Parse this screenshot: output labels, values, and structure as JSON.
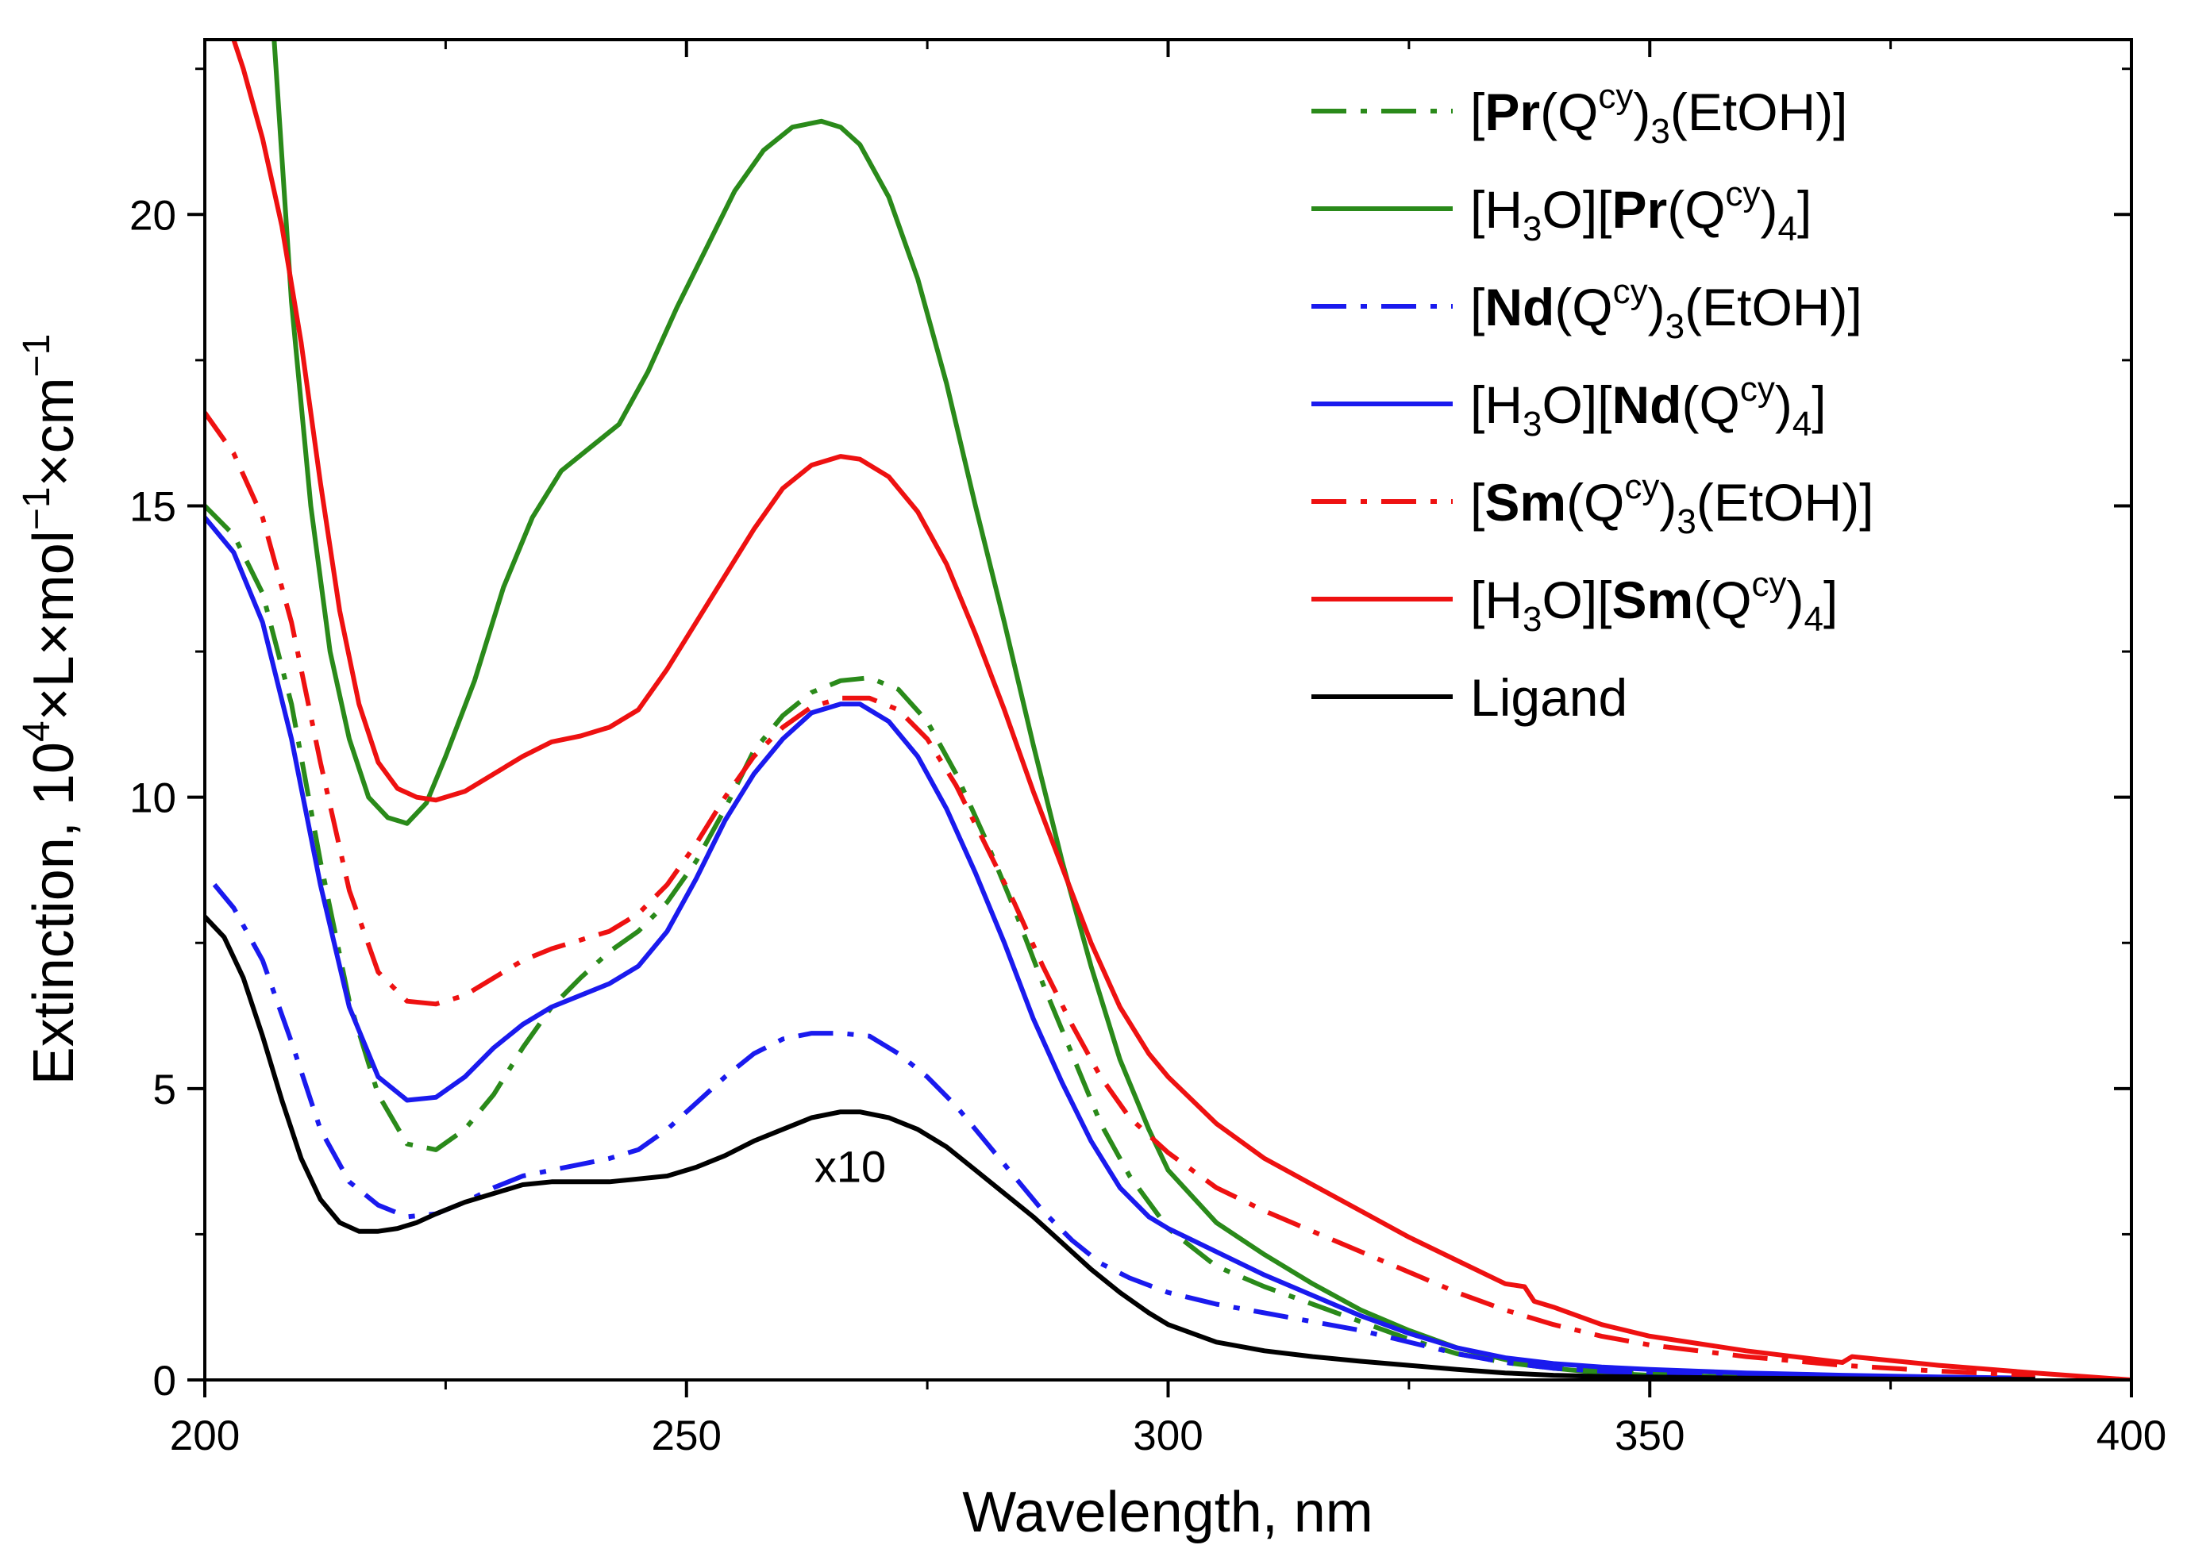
{
  "chart_data": {
    "type": "line",
    "title": "",
    "xlabel": "Wavelength, nm",
    "ylabel": {
      "prefix": "Extinction,  10",
      "exp1": "4",
      "mid1": "×L×mol",
      "exp2": "−1",
      "mid2": "×cm",
      "exp3": "−1"
    },
    "xlim": [
      200,
      400
    ],
    "ylim": [
      0,
      23
    ],
    "xticks": [
      200,
      250,
      300,
      350,
      400
    ],
    "xtick_labels": [
      "200",
      "250",
      "300",
      "350",
      "400"
    ],
    "yticks": [
      0,
      5,
      10,
      15,
      20
    ],
    "ytick_labels": [
      "0",
      "5",
      "10",
      "15",
      "20"
    ],
    "legend_position": "top-right",
    "annotation": {
      "text": "x10",
      "x": 267,
      "y": 3.4
    },
    "series": [
      {
        "name": "[Pr(Qcy)3(EtOH)]",
        "label_parts": [
          {
            "t": "["
          },
          {
            "t": "Pr",
            "b": true
          },
          {
            "t": "(Q"
          },
          {
            "t": "cy",
            "sup": true
          },
          {
            "t": ")"
          },
          {
            "t": "3",
            "sub": true
          },
          {
            "t": "(EtOH)]"
          }
        ],
        "color": "#2a8a1a",
        "style": "dashdot",
        "x": [
          200,
          203,
          206,
          209,
          212,
          215,
          218,
          221,
          224,
          227,
          230,
          233,
          236,
          239,
          242,
          245,
          248,
          251,
          254,
          257,
          260,
          263,
          266,
          269,
          272,
          275,
          278,
          281,
          284,
          287,
          290,
          293,
          296,
          300,
          305,
          310,
          315,
          320,
          325,
          330,
          335,
          340,
          345,
          350,
          360,
          370,
          380,
          390
        ],
        "y": [
          15.0,
          14.5,
          13.5,
          11.6,
          8.9,
          6.5,
          4.9,
          4.05,
          3.95,
          4.3,
          4.9,
          5.7,
          6.4,
          6.9,
          7.35,
          7.7,
          8.2,
          8.9,
          9.8,
          10.8,
          11.4,
          11.8,
          12.0,
          12.05,
          11.85,
          11.3,
          10.4,
          9.3,
          8.1,
          6.8,
          5.6,
          4.4,
          3.5,
          2.6,
          1.95,
          1.6,
          1.3,
          1.0,
          0.7,
          0.45,
          0.3,
          0.2,
          0.15,
          0.12,
          0.08,
          0.06,
          0.04,
          0.03
        ]
      },
      {
        "name": "[H3O][Pr(Qcy)4]",
        "label_parts": [
          {
            "t": "[H"
          },
          {
            "t": "3",
            "sub": true
          },
          {
            "t": "O]["
          },
          {
            "t": "Pr",
            "b": true
          },
          {
            "t": "(Q"
          },
          {
            "t": "cy",
            "sup": true
          },
          {
            "t": ")"
          },
          {
            "t": "4",
            "sub": true
          },
          {
            "t": "]"
          }
        ],
        "color": "#2a8a1a",
        "style": "solid",
        "x": [
          207,
          209,
          211,
          213,
          215,
          217,
          219,
          221,
          223,
          225,
          228,
          231,
          234,
          237,
          240,
          243,
          246,
          249,
          252,
          255,
          258,
          261,
          264,
          266,
          268,
          271,
          274,
          277,
          280,
          283,
          286,
          289,
          292,
          295,
          298,
          300,
          305,
          310,
          315,
          320,
          325,
          330,
          335,
          340,
          345,
          350,
          360,
          370,
          380,
          390
        ],
        "y": [
          23.5,
          18.5,
          15.0,
          12.5,
          11.0,
          10.0,
          9.65,
          9.55,
          9.9,
          10.7,
          12.0,
          13.6,
          14.8,
          15.6,
          16.0,
          16.4,
          17.3,
          18.4,
          19.4,
          20.4,
          21.1,
          21.5,
          21.6,
          21.5,
          21.2,
          20.3,
          18.9,
          17.1,
          15.0,
          13.0,
          10.9,
          8.9,
          7.1,
          5.5,
          4.3,
          3.6,
          2.7,
          2.15,
          1.65,
          1.2,
          0.85,
          0.55,
          0.35,
          0.2,
          0.12,
          0.08,
          0.05,
          0.04,
          0.03,
          0.02
        ]
      },
      {
        "name": "[Nd(Qcy)3(EtOH)]",
        "label_parts": [
          {
            "t": "["
          },
          {
            "t": "Nd",
            "b": true
          },
          {
            "t": "(Q"
          },
          {
            "t": "cy",
            "sup": true
          },
          {
            "t": ")"
          },
          {
            "t": "3",
            "sub": true
          },
          {
            "t": "(EtOH)]"
          }
        ],
        "color": "#1a1aee",
        "style": "dashdot",
        "x": [
          201,
          203,
          206,
          209,
          212,
          215,
          218,
          221,
          224,
          227,
          230,
          233,
          236,
          239,
          242,
          245,
          248,
          251,
          254,
          257,
          260,
          263,
          266,
          269,
          272,
          275,
          278,
          281,
          284,
          287,
          290,
          293,
          296,
          300,
          305,
          310,
          315,
          320,
          325,
          330,
          335,
          340,
          345,
          350,
          360,
          370,
          380,
          390
        ],
        "y": [
          8.5,
          8.1,
          7.2,
          5.8,
          4.3,
          3.4,
          3.0,
          2.8,
          2.85,
          3.05,
          3.3,
          3.5,
          3.6,
          3.7,
          3.8,
          3.95,
          4.3,
          4.75,
          5.2,
          5.6,
          5.85,
          5.95,
          5.95,
          5.9,
          5.6,
          5.2,
          4.7,
          4.1,
          3.5,
          2.9,
          2.4,
          2.0,
          1.75,
          1.5,
          1.3,
          1.15,
          1.0,
          0.85,
          0.65,
          0.45,
          0.3,
          0.2,
          0.15,
          0.1,
          0.08,
          0.06,
          0.04,
          0.03
        ]
      },
      {
        "name": "[H3O][Nd(Qcy)4]",
        "label_parts": [
          {
            "t": "[H"
          },
          {
            "t": "3",
            "sub": true
          },
          {
            "t": "O]["
          },
          {
            "t": "Nd",
            "b": true
          },
          {
            "t": "(Q"
          },
          {
            "t": "cy",
            "sup": true
          },
          {
            "t": ")"
          },
          {
            "t": "4",
            "sub": true
          },
          {
            "t": "]"
          }
        ],
        "color": "#1a1aee",
        "style": "solid",
        "x": [
          200,
          203,
          206,
          209,
          212,
          215,
          218,
          221,
          224,
          227,
          230,
          233,
          236,
          239,
          242,
          245,
          248,
          251,
          254,
          257,
          260,
          263,
          266,
          268,
          271,
          274,
          277,
          280,
          283,
          286,
          289,
          292,
          295,
          298,
          300,
          305,
          310,
          315,
          320,
          325,
          330,
          335,
          340,
          345,
          350,
          360,
          370,
          380,
          390
        ],
        "y": [
          14.8,
          14.2,
          13.0,
          11.0,
          8.5,
          6.4,
          5.2,
          4.8,
          4.85,
          5.2,
          5.7,
          6.1,
          6.4,
          6.6,
          6.8,
          7.1,
          7.7,
          8.6,
          9.6,
          10.4,
          11.0,
          11.45,
          11.6,
          11.6,
          11.3,
          10.7,
          9.8,
          8.7,
          7.5,
          6.2,
          5.1,
          4.1,
          3.3,
          2.8,
          2.6,
          2.2,
          1.8,
          1.45,
          1.1,
          0.8,
          0.55,
          0.38,
          0.28,
          0.22,
          0.18,
          0.12,
          0.08,
          0.05,
          0.03
        ]
      },
      {
        "name": "[Sm(Qcy)3(EtOH)]",
        "label_parts": [
          {
            "t": "["
          },
          {
            "t": "Sm",
            "b": true
          },
          {
            "t": "(Q"
          },
          {
            "t": "cy",
            "sup": true
          },
          {
            "t": ")"
          },
          {
            "t": "3",
            "sub": true
          },
          {
            "t": "(EtOH)]"
          }
        ],
        "color": "#ee1111",
        "style": "dashdot",
        "x": [
          200,
          203,
          206,
          209,
          212,
          215,
          218,
          221,
          224,
          227,
          230,
          233,
          236,
          239,
          242,
          245,
          248,
          251,
          254,
          257,
          260,
          263,
          266,
          269,
          272,
          275,
          278,
          281,
          284,
          287,
          290,
          293,
          296,
          300,
          305,
          310,
          315,
          320,
          325,
          330,
          335,
          340,
          345,
          350,
          360,
          370,
          380,
          390
        ],
        "y": [
          16.6,
          15.9,
          14.8,
          13.0,
          10.6,
          8.4,
          7.0,
          6.5,
          6.45,
          6.6,
          6.9,
          7.2,
          7.4,
          7.55,
          7.7,
          8.0,
          8.5,
          9.2,
          10.0,
          10.7,
          11.2,
          11.55,
          11.7,
          11.7,
          11.5,
          11.0,
          10.2,
          9.2,
          8.2,
          7.1,
          6.1,
          5.2,
          4.5,
          3.9,
          3.3,
          2.9,
          2.55,
          2.2,
          1.85,
          1.5,
          1.2,
          0.95,
          0.75,
          0.6,
          0.4,
          0.25,
          0.15,
          0.08
        ]
      },
      {
        "name": "[H3O][Sm(Qcy)4]",
        "label_parts": [
          {
            "t": "[H"
          },
          {
            "t": "3",
            "sub": true
          },
          {
            "t": "O]["
          },
          {
            "t": "Sm",
            "b": true
          },
          {
            "t": "(Q"
          },
          {
            "t": "cy",
            "sup": true
          },
          {
            "t": ")"
          },
          {
            "t": "4",
            "sub": true
          },
          {
            "t": "]"
          }
        ],
        "color": "#ee1111",
        "style": "solid",
        "x": [
          202,
          204,
          206,
          208,
          210,
          212,
          214,
          216,
          218,
          220,
          222,
          224,
          227,
          230,
          233,
          236,
          239,
          242,
          245,
          248,
          251,
          254,
          257,
          260,
          263,
          266,
          268,
          271,
          274,
          277,
          280,
          283,
          286,
          289,
          292,
          295,
          298,
          300,
          305,
          310,
          315,
          320,
          325,
          330,
          335,
          337,
          338,
          340,
          345,
          350,
          360,
          370,
          371,
          380,
          390,
          400
        ],
        "y": [
          23.5,
          22.5,
          21.3,
          19.8,
          17.8,
          15.4,
          13.2,
          11.6,
          10.6,
          10.15,
          10.0,
          9.95,
          10.1,
          10.4,
          10.7,
          10.95,
          11.05,
          11.2,
          11.5,
          12.2,
          13.0,
          13.8,
          14.6,
          15.3,
          15.7,
          15.85,
          15.8,
          15.5,
          14.9,
          14.0,
          12.8,
          11.5,
          10.1,
          8.8,
          7.5,
          6.4,
          5.6,
          5.2,
          4.4,
          3.8,
          3.35,
          2.9,
          2.45,
          2.05,
          1.65,
          1.6,
          1.35,
          1.25,
          0.95,
          0.75,
          0.5,
          0.3,
          0.4,
          0.25,
          0.12,
          0.0
        ]
      },
      {
        "name": "Ligand",
        "label_parts": [
          {
            "t": "Ligand"
          }
        ],
        "color": "#000000",
        "style": "solid",
        "x": [
          200,
          202,
          204,
          206,
          208,
          210,
          212,
          214,
          216,
          218,
          220,
          222,
          224,
          227,
          230,
          233,
          236,
          239,
          242,
          245,
          248,
          251,
          254,
          257,
          260,
          263,
          266,
          268,
          271,
          274,
          277,
          280,
          283,
          286,
          289,
          292,
          295,
          298,
          300,
          305,
          310,
          315,
          320,
          325,
          330,
          335,
          340,
          345,
          350,
          360,
          370,
          380,
          390
        ],
        "y": [
          7.95,
          7.6,
          6.9,
          5.9,
          4.8,
          3.8,
          3.1,
          2.7,
          2.55,
          2.55,
          2.6,
          2.7,
          2.85,
          3.05,
          3.2,
          3.35,
          3.4,
          3.4,
          3.4,
          3.45,
          3.5,
          3.65,
          3.85,
          4.1,
          4.3,
          4.5,
          4.6,
          4.6,
          4.5,
          4.3,
          4.0,
          3.6,
          3.2,
          2.8,
          2.35,
          1.9,
          1.5,
          1.15,
          0.95,
          0.65,
          0.5,
          0.4,
          0.32,
          0.25,
          0.18,
          0.12,
          0.08,
          0.06,
          0.05,
          0.03,
          0.02,
          0.01,
          0.01
        ]
      }
    ]
  }
}
